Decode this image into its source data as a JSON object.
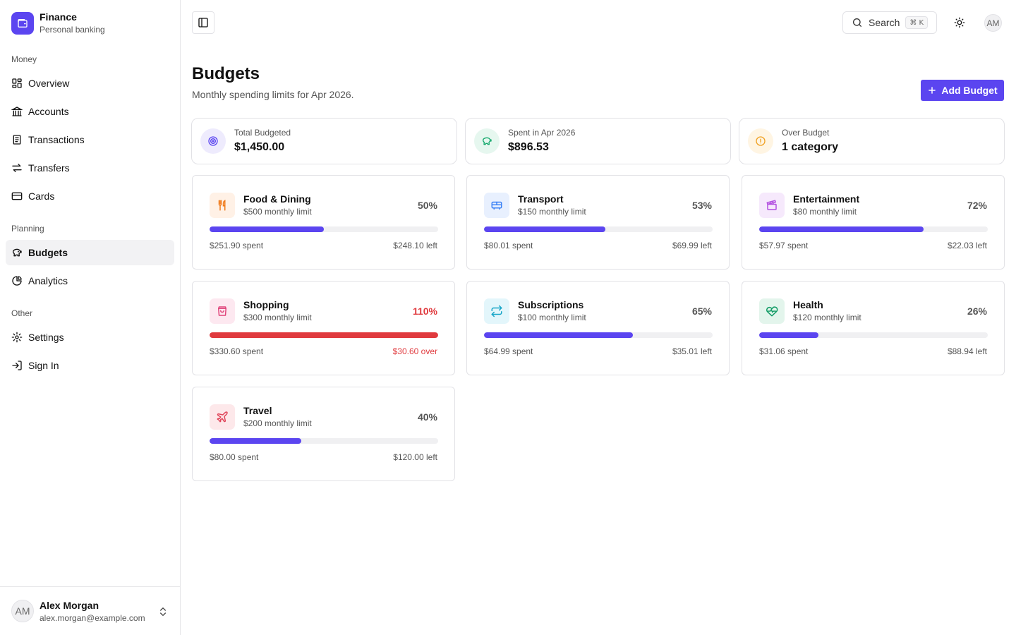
{
  "brand": {
    "name": "Finance",
    "subtitle": "Personal banking",
    "logo_icon": "wallet-icon"
  },
  "sidebar": {
    "groups": [
      {
        "label": "Money",
        "items": [
          {
            "label": "Overview",
            "icon": "grid-icon"
          },
          {
            "label": "Accounts",
            "icon": "bank-icon"
          },
          {
            "label": "Transactions",
            "icon": "receipt-icon"
          },
          {
            "label": "Transfers",
            "icon": "arrows-icon"
          },
          {
            "label": "Cards",
            "icon": "credit-card-icon"
          }
        ]
      },
      {
        "label": "Planning",
        "items": [
          {
            "label": "Budgets",
            "icon": "piggy-bank-icon",
            "active": true
          },
          {
            "label": "Analytics",
            "icon": "pie-chart-icon"
          }
        ]
      },
      {
        "label": "Other",
        "items": [
          {
            "label": "Settings",
            "icon": "gear-icon"
          },
          {
            "label": "Sign In",
            "icon": "sign-in-icon"
          }
        ]
      }
    ],
    "user": {
      "initials": "AM",
      "name": "Alex Morgan",
      "email": "alex.morgan@example.com"
    }
  },
  "topbar": {
    "search_label": "Search",
    "shortcut": "⌘ K",
    "avatar_initials": "AM"
  },
  "header": {
    "title": "Budgets",
    "subtitle": "Monthly spending limits for Apr 2026.",
    "add_button": "Add Budget"
  },
  "stats": [
    {
      "label": "Total Budgeted",
      "value": "$1,450.00",
      "icon": "target-icon",
      "color": "#5b45f0",
      "bg": "#eeebfd"
    },
    {
      "label": "Spent in Apr 2026",
      "value": "$896.53",
      "icon": "piggy-bank-icon",
      "color": "#12a86b",
      "bg": "#e6f7ef"
    },
    {
      "label": "Over Budget",
      "value": "1 category",
      "icon": "alert-circle-icon",
      "color": "#f0a020",
      "bg": "#fff5e3"
    }
  ],
  "budgets": [
    {
      "name": "Food & Dining",
      "limit": "$500 monthly limit",
      "percent": "50%",
      "progress": 0.5,
      "spent": "$251.90 spent",
      "remaining": "$248.10 left",
      "over": false,
      "icon": "utensils-icon",
      "color": "#f07a1a",
      "bg": "#fff1e6"
    },
    {
      "name": "Transport",
      "limit": "$150 monthly limit",
      "percent": "53%",
      "progress": 0.53,
      "spent": "$80.01 spent",
      "remaining": "$69.99 left",
      "over": false,
      "icon": "bus-icon",
      "color": "#3b82f6",
      "bg": "#e8f0fe"
    },
    {
      "name": "Entertainment",
      "limit": "$80 monthly limit",
      "percent": "72%",
      "progress": 0.72,
      "spent": "$57.97 spent",
      "remaining": "$22.03 left",
      "over": false,
      "icon": "clapperboard-icon",
      "color": "#b24fe0",
      "bg": "#f6e9fc"
    },
    {
      "name": "Shopping",
      "limit": "$300 monthly limit",
      "percent": "110%",
      "progress": 1.0,
      "spent": "$330.60 spent",
      "remaining": "$30.60 over",
      "over": true,
      "icon": "shopping-bag-icon",
      "color": "#e0457b",
      "bg": "#fde8f0"
    },
    {
      "name": "Subscriptions",
      "limit": "$100 monthly limit",
      "percent": "65%",
      "progress": 0.65,
      "spent": "$64.99 spent",
      "remaining": "$35.01 left",
      "over": false,
      "icon": "repeat-icon",
      "color": "#16a5c7",
      "bg": "#e3f6fb"
    },
    {
      "name": "Health",
      "limit": "$120 monthly limit",
      "percent": "26%",
      "progress": 0.26,
      "spent": "$31.06 spent",
      "remaining": "$88.94 left",
      "over": false,
      "icon": "heart-pulse-icon",
      "color": "#0e9a63",
      "bg": "#e3f5ec"
    },
    {
      "name": "Travel",
      "limit": "$200 monthly limit",
      "percent": "40%",
      "progress": 0.4,
      "spent": "$80.00 spent",
      "remaining": "$120.00 left",
      "over": false,
      "icon": "plane-icon",
      "color": "#e0455a",
      "bg": "#fde8ea"
    }
  ]
}
